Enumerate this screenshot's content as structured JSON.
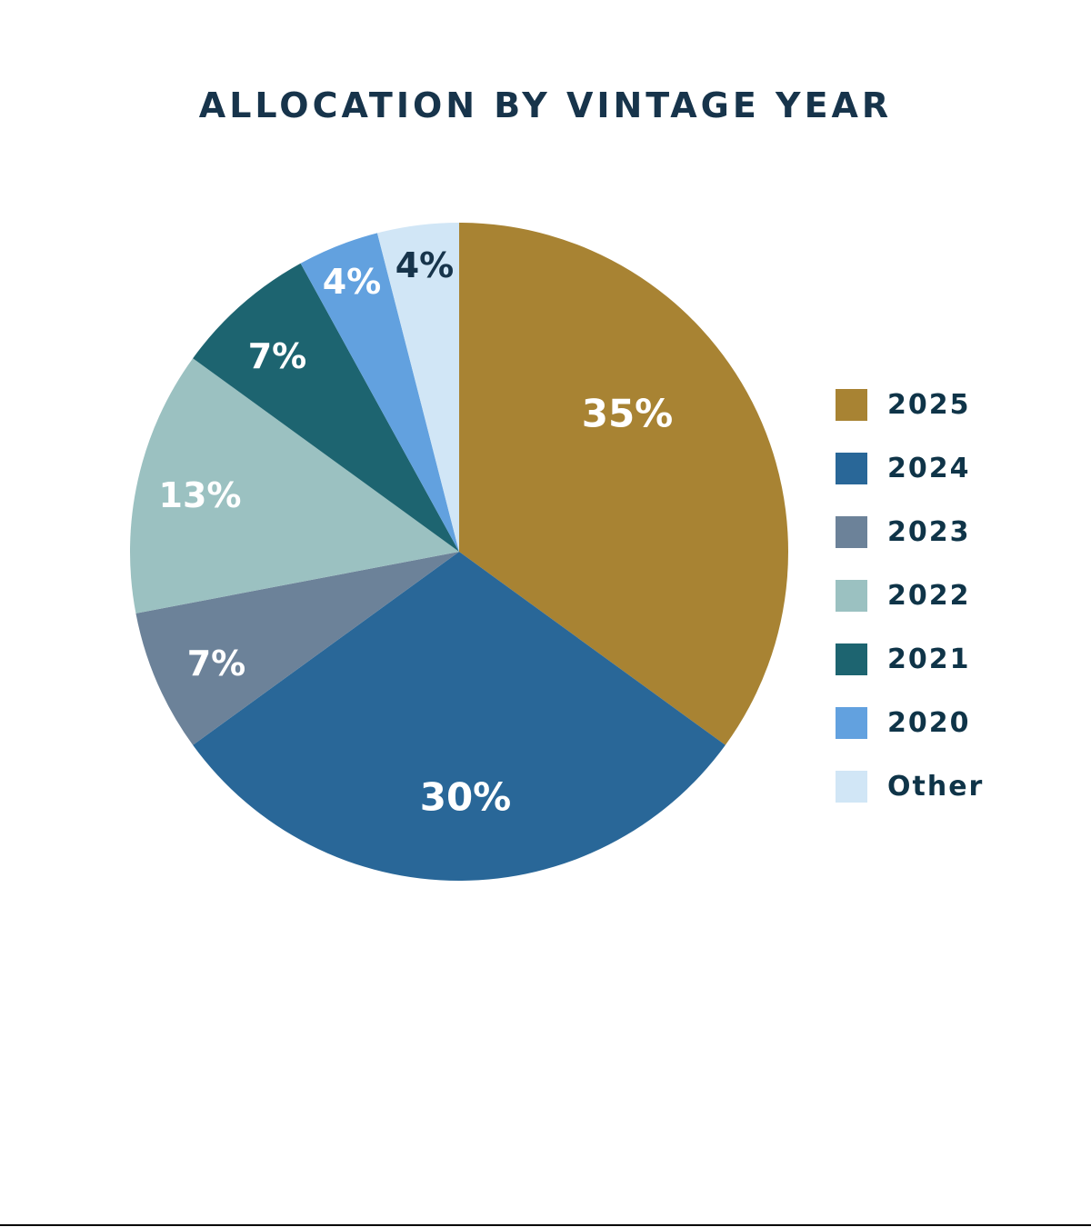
{
  "chart_data": {
    "type": "pie",
    "title": "ALLOCATION BY VINTAGE YEAR",
    "start": "top, clockwise",
    "slices": [
      {
        "label": "2025",
        "value": 35,
        "data_label": "35%",
        "color": "#A88333",
        "label_color": "#ffffff"
      },
      {
        "label": "2024",
        "value": 30,
        "data_label": "30%",
        "color": "#296798",
        "label_color": "#ffffff"
      },
      {
        "label": "2023",
        "value": 7,
        "data_label": "7%",
        "color": "#6C8299",
        "label_color": "#ffffff"
      },
      {
        "label": "2022",
        "value": 13,
        "data_label": "13%",
        "color": "#9BC1C1",
        "label_color": "#ffffff"
      },
      {
        "label": "2021",
        "value": 7,
        "data_label": "7%",
        "color": "#1D6470",
        "label_color": "#ffffff"
      },
      {
        "label": "2020",
        "value": 4,
        "data_label": "4%",
        "color": "#62A1DF",
        "label_color": "#ffffff"
      },
      {
        "label": "Other",
        "value": 4,
        "data_label": "4%",
        "color": "#D1E6F6",
        "label_color": "#17344b"
      }
    ],
    "legend_placement": "right"
  }
}
